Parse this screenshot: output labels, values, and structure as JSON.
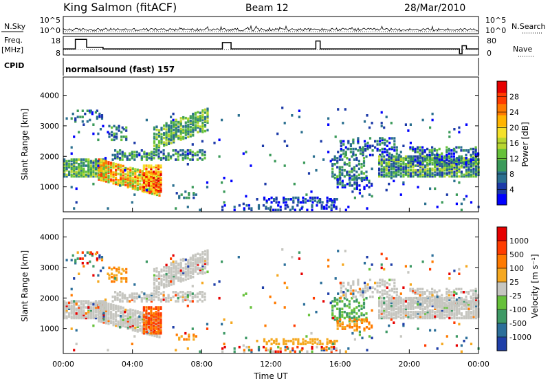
{
  "header": {
    "station": "King Salmon (fitACF)",
    "beam": "Beam 12",
    "date": "28/Mar/2010"
  },
  "strip_labels": {
    "nsky": "N.Sky",
    "freq_line1": "Freq.",
    "freq_line2": "[MHz]",
    "cpid": "CPID",
    "nsearch": "N.Search",
    "nave": "Nave",
    "cpid_text": "normalsound (fast) 157"
  },
  "chart_data": [
    {
      "type": "line",
      "panel": "noise",
      "y_left_ticks": [
        "10^5",
        "10^0"
      ],
      "y_right_ticks": [
        "10^5",
        "10^0"
      ],
      "series": [
        {
          "name": "N.Sky"
        },
        {
          "name": "N.Search"
        }
      ]
    },
    {
      "type": "line",
      "panel": "frequency",
      "y_left_ticks": [
        "18",
        "8"
      ],
      "y_right_ticks": [
        "80",
        "0"
      ],
      "freq_steps": [
        {
          "t0": 0.0,
          "t1": 0.7,
          "f": 11
        },
        {
          "t0": 0.7,
          "t1": 1.35,
          "f": 17
        },
        {
          "t0": 1.35,
          "t1": 2.3,
          "f": 12
        },
        {
          "t0": 2.3,
          "t1": 9.2,
          "f": 11
        },
        {
          "t0": 9.2,
          "t1": 9.7,
          "f": 15
        },
        {
          "t0": 9.7,
          "t1": 14.6,
          "f": 11
        },
        {
          "t0": 14.6,
          "t1": 14.85,
          "f": 16
        },
        {
          "t0": 14.85,
          "t1": 22.9,
          "f": 11
        },
        {
          "t0": 22.9,
          "t1": 23.05,
          "f": 8
        },
        {
          "t0": 23.05,
          "t1": 23.3,
          "f": 13
        },
        {
          "t0": 23.3,
          "t1": 24.0,
          "f": 11
        }
      ],
      "series": [
        {
          "name": "Nave"
        }
      ]
    },
    {
      "type": "heatmap",
      "panel": "power",
      "ylabel": "Slant Range [km]",
      "ylim": [
        180,
        4600
      ],
      "y_ticks": [
        1000,
        2000,
        3000,
        4000
      ],
      "colorbar": {
        "label": "Power [dB]",
        "ticks": [
          "4",
          "8",
          "12",
          "16",
          "20",
          "24",
          "28"
        ],
        "colors": [
          "#0000ff",
          "#1c3aa8",
          "#2a6f8f",
          "#3b9a5a",
          "#66c13a",
          "#b8d630",
          "#f5e12a",
          "#ffb400",
          "#ff7a00",
          "#ff3c00",
          "#e60000"
        ]
      }
    },
    {
      "type": "heatmap",
      "panel": "velocity",
      "ylabel": "Slant Range [km]",
      "xlabel": "Time UT",
      "ylim": [
        180,
        4600
      ],
      "y_ticks": [
        1000,
        2000,
        3000,
        4000
      ],
      "x_ticks": [
        "00:00",
        "04:00",
        "08:00",
        "12:00",
        "16:00",
        "20:00",
        "00:00"
      ],
      "xlim": [
        0,
        24
      ],
      "colorbar": {
        "label": "Velocity [m s⁻¹]",
        "ticks": [
          "1000",
          "500",
          "100",
          "25",
          "-25",
          "-100",
          "-500",
          "-1000"
        ],
        "colors": [
          "#1f3fa8",
          "#2c6f9a",
          "#3f9a66",
          "#66c13a",
          "#c6c6c0",
          "#f5a820",
          "#ff7a00",
          "#ff3c00",
          "#e60000"
        ]
      }
    }
  ]
}
